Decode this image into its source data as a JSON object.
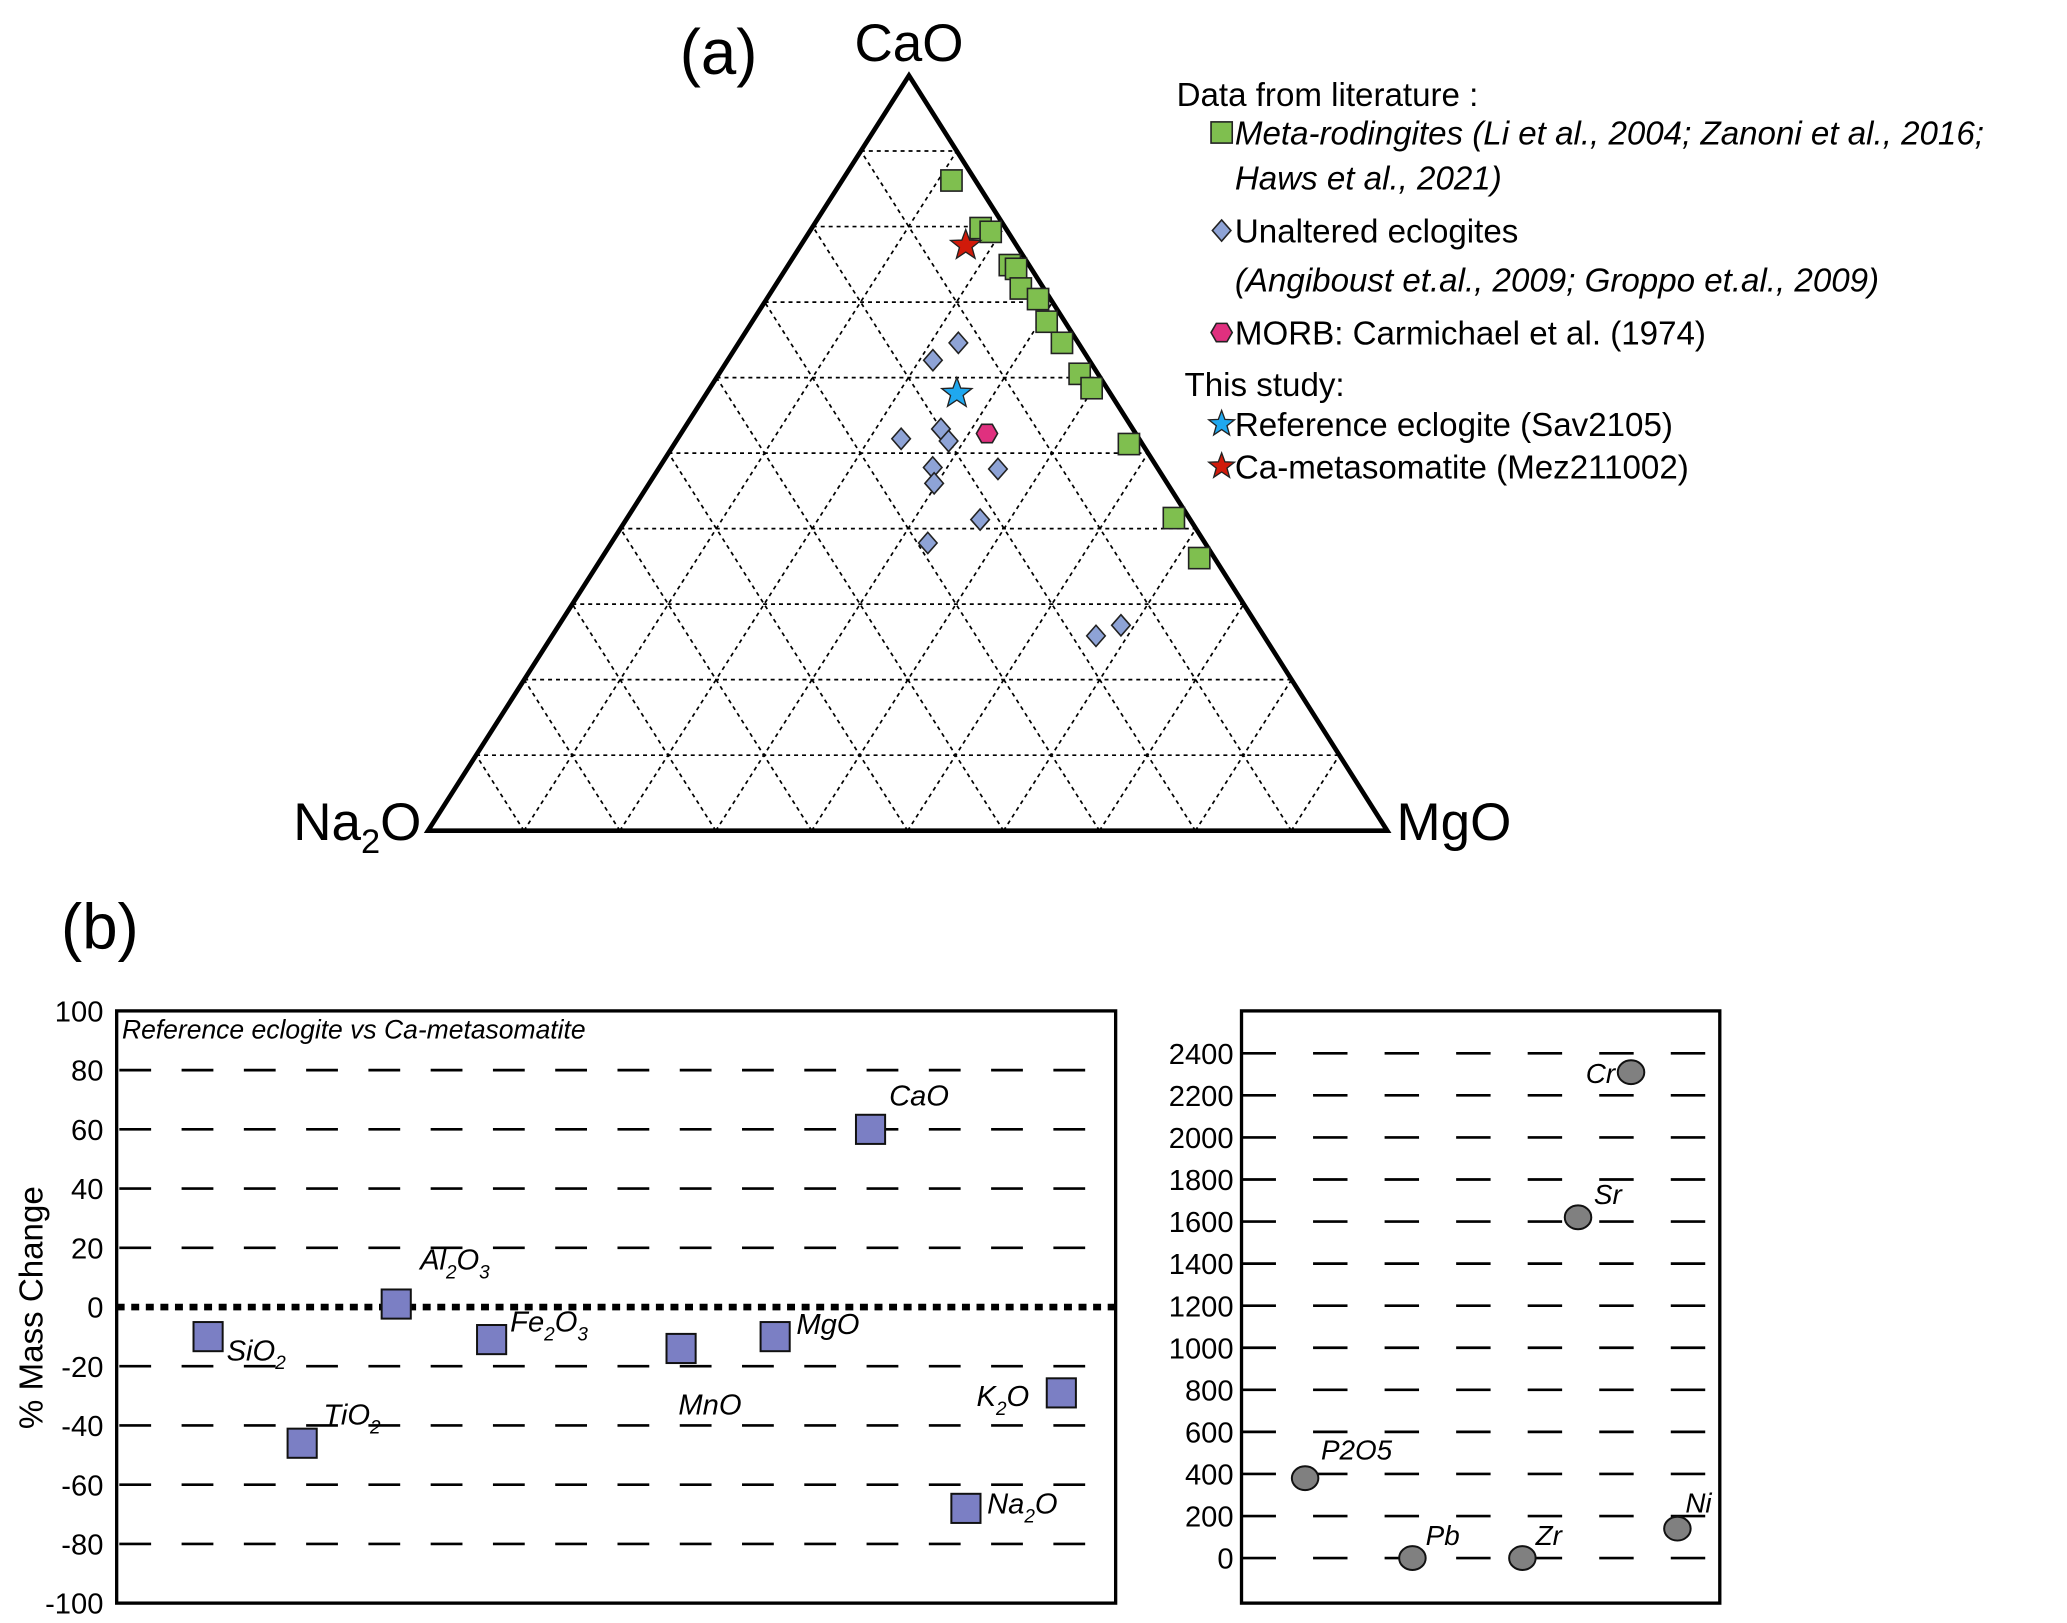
{
  "panel_a_label": "(a)",
  "panel_b_label": "(b)",
  "colors": {
    "meta_rodingite": "#7fbf4f",
    "eclogite": "#8ea3d6",
    "morb": "#e0307f",
    "reference": "#1fa8ef",
    "ca_metasomatite": "#d11a0a",
    "mass_square": "#7b7fc4",
    "trace_circle": "#808080"
  },
  "chart_data": [
    {
      "type": "scatter",
      "subtype": "ternary",
      "title": "(a)",
      "apices": {
        "top": "CaO",
        "left": "Na2O",
        "right": "MgO"
      },
      "grid": "dashed, 10% intervals",
      "legend": {
        "placement": "top-right",
        "heading_literature": "Data from literature :",
        "heading_study": "This study:",
        "entries": [
          {
            "key": "meta_rodingite",
            "label": "Meta-rodingites (Li et al., 2004; Zanoni et al., 2016;",
            "label2": "Haws et al., 2021)",
            "italic": true
          },
          {
            "key": "eclogite",
            "label": "Unaltered eclogites",
            "label2": "(Angiboust et.al., 2009; Groppo et.al., 2009)"
          },
          {
            "key": "morb",
            "label": "MORB: Carmichael et al. (1974)"
          },
          {
            "key": "reference",
            "label": "Reference eclogite (Sav2105)"
          },
          {
            "key": "ca_metasomatite",
            "label": "Ca-metasomatite (Mez211002)"
          }
        ]
      },
      "series": [
        {
          "name": "Meta-rodingites",
          "key": "meta_rodingite",
          "marker": "square",
          "points_cao_mgo": [
            [
              0.861,
              0.114
            ],
            [
              0.798,
              0.176
            ],
            [
              0.793,
              0.189
            ],
            [
              0.749,
              0.231
            ],
            [
              0.744,
              0.24
            ],
            [
              0.718,
              0.258
            ],
            [
              0.704,
              0.283
            ],
            [
              0.674,
              0.307
            ],
            [
              0.646,
              0.337
            ],
            [
              0.605,
              0.376
            ],
            [
              0.586,
              0.398
            ],
            [
              0.512,
              0.474
            ],
            [
              0.414,
              0.57
            ],
            [
              0.361,
              0.623
            ]
          ]
        },
        {
          "name": "Unaltered eclogites",
          "key": "eclogite",
          "marker": "diamond",
          "points_cao_mgo": [
            [
              0.623,
              0.214
            ],
            [
              0.646,
              0.229
            ],
            [
              0.519,
              0.233
            ],
            [
              0.532,
              0.268
            ],
            [
              0.516,
              0.284
            ],
            [
              0.481,
              0.285
            ],
            [
              0.479,
              0.354
            ],
            [
              0.46,
              0.297
            ],
            [
              0.412,
              0.369
            ],
            [
              0.381,
              0.33
            ],
            [
              0.272,
              0.586
            ],
            [
              0.258,
              0.567
            ]
          ]
        },
        {
          "name": "MORB",
          "key": "morb",
          "marker": "hexagon",
          "points_cao_mgo": [
            [
              0.526,
              0.319
            ]
          ]
        },
        {
          "name": "Reference eclogite (Sav2105)",
          "key": "reference",
          "marker": "star",
          "points_cao_mgo": [
            [
              0.579,
              0.261
            ]
          ]
        },
        {
          "name": "Ca-metasomatite (Mez211002)",
          "key": "ca_metasomatite",
          "marker": "star",
          "points_cao_mgo": [
            [
              0.775,
              0.172
            ]
          ]
        }
      ]
    },
    {
      "type": "scatter",
      "title": "Reference eclogite vs Ca-metasomatite",
      "ylabel": "% Mass Change",
      "ylim": [
        -100,
        100
      ],
      "yticks": [
        -100,
        -80,
        -60,
        -40,
        -20,
        0,
        20,
        40,
        60,
        80,
        100
      ],
      "points": [
        {
          "label": "SiO2",
          "value": -10
        },
        {
          "label": "TiO2",
          "value": -46
        },
        {
          "label": "Al2O3",
          "value": 1
        },
        {
          "label": "Fe2O3",
          "value": -11
        },
        {
          "label": "MnO",
          "value": -14
        },
        {
          "label": "MgO",
          "value": -10
        },
        {
          "label": "CaO",
          "value": 60
        },
        {
          "label": "Na2O",
          "value": -68
        },
        {
          "label": "K2O",
          "value": -29
        }
      ]
    },
    {
      "type": "scatter",
      "ylim": [
        -200,
        2600
      ],
      "yticks": [
        0,
        200,
        400,
        600,
        800,
        1000,
        1200,
        1400,
        1600,
        1800,
        2000,
        2200,
        2400
      ],
      "points": [
        {
          "label": "P2O5",
          "value": 380
        },
        {
          "label": "Pb",
          "value": 0
        },
        {
          "label": "Zr",
          "value": 0
        },
        {
          "label": "Sr",
          "value": 1620
        },
        {
          "label": "Cr",
          "value": 2310
        },
        {
          "label": "Ni",
          "value": 140
        }
      ]
    }
  ]
}
